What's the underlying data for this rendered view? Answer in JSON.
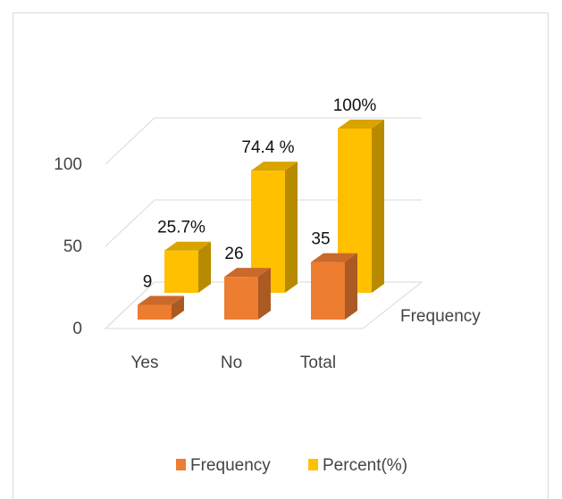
{
  "chart_data": {
    "type": "bar",
    "categories": [
      "Yes",
      "No",
      "Total"
    ],
    "series": [
      {
        "name": "Frequency",
        "values": [
          9,
          26,
          35
        ],
        "labels": [
          "9",
          "26",
          "35"
        ],
        "color": "#ED7D31"
      },
      {
        "name": "Percent(%)",
        "values": [
          25.7,
          74.4,
          100
        ],
        "labels": [
          "25.7%",
          "74.4 %",
          "100%"
        ],
        "color": "#FFC000"
      }
    ],
    "depth_axis_label": "Frequency",
    "yticks": [
      "0",
      "50",
      "100"
    ],
    "ylim": [
      0,
      100
    ],
    "grid": true,
    "legend_position": "bottom",
    "style": "3d-column"
  }
}
